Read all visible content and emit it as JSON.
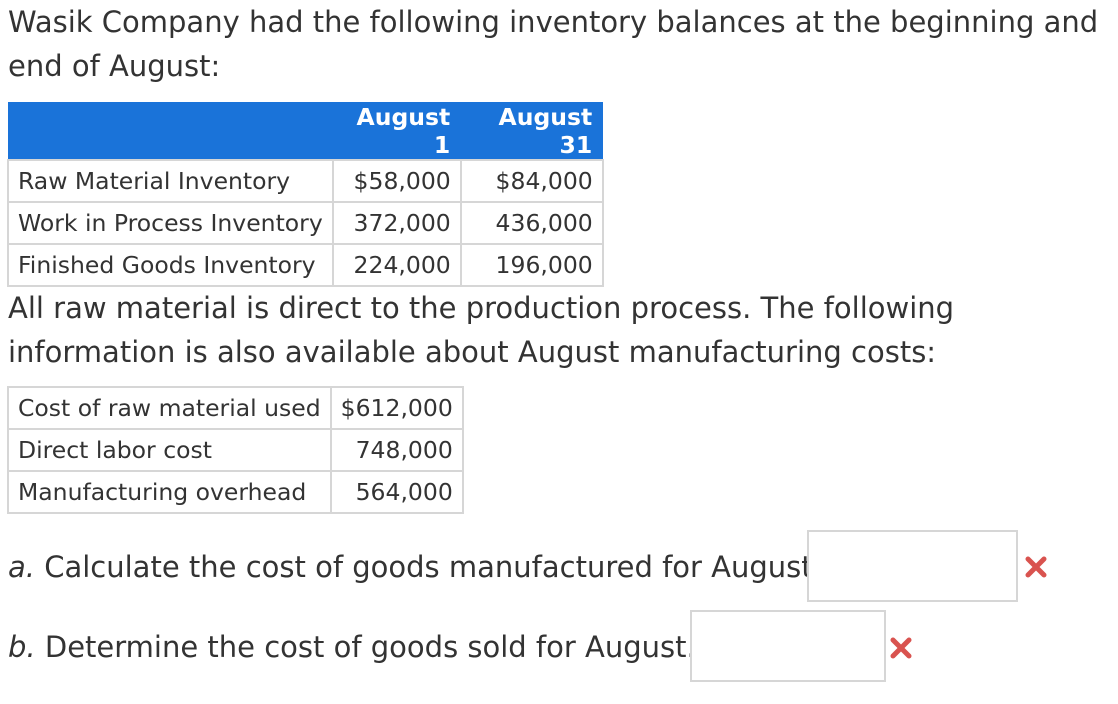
{
  "intro": "Wasik Company had the following inventory balances at the beginning and end of August:",
  "inventory_table": {
    "headers": [
      "",
      "August 1",
      "August 31"
    ],
    "rows": [
      {
        "label": "Raw Material Inventory",
        "aug1": "$58,000",
        "aug31": "$84,000"
      },
      {
        "label": "Work in Process Inventory",
        "aug1": "372,000",
        "aug31": "436,000"
      },
      {
        "label": "Finished Goods Inventory",
        "aug1": "224,000",
        "aug31": "196,000"
      }
    ]
  },
  "info": "All raw material is direct to the production process. The following information is also available about August manufacturing costs:",
  "cost_table": {
    "rows": [
      {
        "label": "Cost of raw material used",
        "value": "$612,000"
      },
      {
        "label": "Direct labor cost",
        "value": "748,000"
      },
      {
        "label": "Manufacturing overhead",
        "value": "564,000"
      }
    ]
  },
  "questions": {
    "a": {
      "letter": "a.",
      "text": " Calculate the cost of goods manufactured for August. $",
      "value": "",
      "status_icon": "red-x-icon",
      "status_color": "#d9534f"
    },
    "b": {
      "letter": "b.",
      "text": " Determine the cost of goods sold for August. $",
      "value": "",
      "status_icon": "red-x-icon",
      "status_color": "#d9534f"
    }
  },
  "colors": {
    "header_bg": "#1a73d9",
    "header_text": "#ffffff",
    "border": "#d6d6d6",
    "text": "#333333"
  }
}
